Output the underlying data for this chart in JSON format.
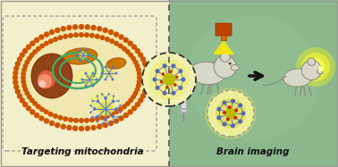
{
  "left_bg": "#f2efcc",
  "right_bg": "#8db88d",
  "cell_bg": "#f0e8b0",
  "cell_membrane_color": "#cc5500",
  "nucleus_outer_color": "#8b3a10",
  "nucleus_inner_color": "#f08050",
  "nucleus_spot_color": "#ffffff",
  "mito_color": "#cc7700",
  "mito_edge": "#aa5500",
  "er_color": "#44aa66",
  "nano_yellow": "#dddd00",
  "nano_blue": "#5577cc",
  "nano_red": "#cc2200",
  "center_circle_bg": "#eeee99",
  "center_circle_edge": "#333333",
  "arrow_color": "#111111",
  "left_label": "Targeting mitochondria",
  "right_label": "Brain imaging",
  "label_fontsize": 7.5,
  "label_fontweight": "bold",
  "divider_color": "#555555",
  "laser_body_color": "#bb4400",
  "laser_beam_color": "#ffee00",
  "mouse_body_color": "#d8d8c8",
  "mouse_edge_color": "#888877",
  "glow_color": "#ffff00",
  "brain_circle_edge": "#8899aa",
  "syringe_color": "#aaaaaa",
  "right_bg_gradient_inner": "#9dc89d"
}
